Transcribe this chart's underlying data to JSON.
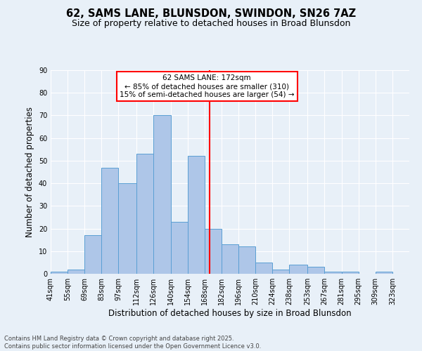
{
  "title1": "62, SAMS LANE, BLUNSDON, SWINDON, SN26 7AZ",
  "title2": "Size of property relative to detached houses in Broad Blunsdon",
  "xlabel": "Distribution of detached houses by size in Broad Blunsdon",
  "ylabel": "Number of detached properties",
  "bins": [
    "41sqm",
    "55sqm",
    "69sqm",
    "83sqm",
    "97sqm",
    "112sqm",
    "126sqm",
    "140sqm",
    "154sqm",
    "168sqm",
    "182sqm",
    "196sqm",
    "210sqm",
    "224sqm",
    "238sqm",
    "253sqm",
    "267sqm",
    "281sqm",
    "295sqm",
    "309sqm",
    "323sqm"
  ],
  "values": [
    1,
    2,
    17,
    47,
    40,
    53,
    70,
    23,
    52,
    20,
    13,
    12,
    5,
    2,
    4,
    3,
    1,
    1,
    0,
    1,
    0
  ],
  "bin_edges": [
    41,
    55,
    69,
    83,
    97,
    112,
    126,
    140,
    154,
    168,
    182,
    196,
    210,
    224,
    238,
    253,
    267,
    281,
    295,
    309,
    323,
    337
  ],
  "bar_color": "#aec6e8",
  "bar_edge_color": "#5a9fd4",
  "property_size": 172,
  "vline_color": "red",
  "annotation_text": "62 SAMS LANE: 172sqm\n← 85% of detached houses are smaller (310)\n15% of semi-detached houses are larger (54) →",
  "annotation_box_color": "white",
  "annotation_box_edge": "red",
  "ylim": [
    0,
    90
  ],
  "yticks": [
    0,
    10,
    20,
    30,
    40,
    50,
    60,
    70,
    80,
    90
  ],
  "background_color": "#e8f0f8",
  "footer": "Contains HM Land Registry data © Crown copyright and database right 2025.\nContains public sector information licensed under the Open Government Licence v3.0.",
  "title1_fontsize": 10.5,
  "title2_fontsize": 9,
  "xlabel_fontsize": 8.5,
  "ylabel_fontsize": 8.5,
  "tick_fontsize": 7,
  "footer_fontsize": 6,
  "annot_fontsize": 7.5
}
